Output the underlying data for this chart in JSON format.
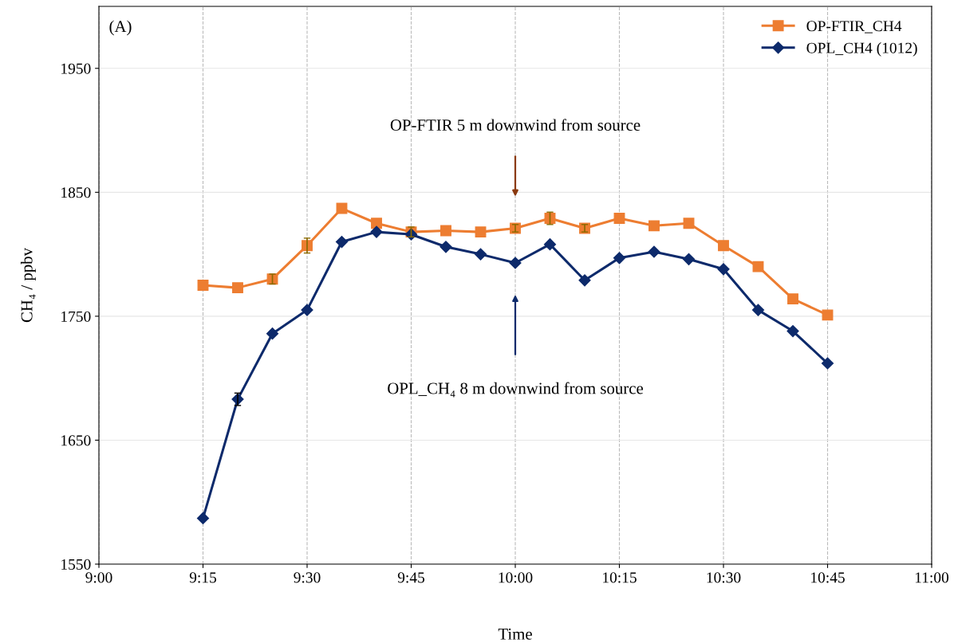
{
  "chart_data": {
    "type": "line",
    "xlabel": "Time",
    "ylabel": "CH₄ / ppbv",
    "x": [
      9.25,
      9.3333,
      9.4167,
      9.5,
      9.5833,
      9.6667,
      9.75,
      9.8333,
      9.9167,
      10.0,
      10.0833,
      10.1667,
      10.25,
      10.3333,
      10.4167,
      10.5,
      10.5833,
      10.6667,
      10.75
    ],
    "series": [
      {
        "name": "OP-FTIR_CH4",
        "color": "#ed7d31",
        "marker": "square",
        "values": [
          1775,
          1773,
          1780,
          1807,
          1837,
          1825,
          1818,
          1819,
          1818,
          1821,
          1829,
          1821,
          1829,
          1823,
          1825,
          1807,
          1790,
          1764,
          1751
        ],
        "errors": [
          null,
          null,
          4,
          6,
          null,
          null,
          4,
          null,
          null,
          3,
          5,
          3,
          null,
          null,
          null,
          null,
          null,
          null,
          null
        ]
      },
      {
        "name": "OPL_CH4 (1012)",
        "color": "#0d2a6b",
        "marker": "diamond",
        "values": [
          1587,
          1683,
          1736,
          1755,
          1810,
          1818,
          1816,
          1806,
          1800,
          1793,
          1808,
          1779,
          1797,
          1802,
          1796,
          1788,
          1755,
          1738,
          1712
        ],
        "errors": [
          null,
          5,
          null,
          null,
          null,
          null,
          null,
          null,
          null,
          null,
          null,
          null,
          null,
          null,
          null,
          null,
          null,
          null,
          null
        ]
      }
    ],
    "xlim": [
      9.0,
      11.0
    ],
    "xticks": [
      {
        "value": 9.0,
        "label": "9:00"
      },
      {
        "value": 9.25,
        "label": "9:15"
      },
      {
        "value": 9.5,
        "label": "9:30"
      },
      {
        "value": 9.75,
        "label": "9:45"
      },
      {
        "value": 10.0,
        "label": "10:00"
      },
      {
        "value": 10.25,
        "label": "10:15"
      },
      {
        "value": 10.5,
        "label": "10:30"
      },
      {
        "value": 10.75,
        "label": "10:45"
      },
      {
        "value": 11.0,
        "label": "11:00"
      }
    ],
    "ylim": [
      1550,
      2000
    ],
    "yticks": [
      1550,
      1650,
      1750,
      1850,
      1950
    ],
    "grid": true,
    "legend": "top right",
    "line_style": "solid",
    "annotations": [
      "(A)",
      "OP-FTIR 5 m downwind from source",
      "OPL_CH₄ 8 m downwind from source"
    ]
  }
}
